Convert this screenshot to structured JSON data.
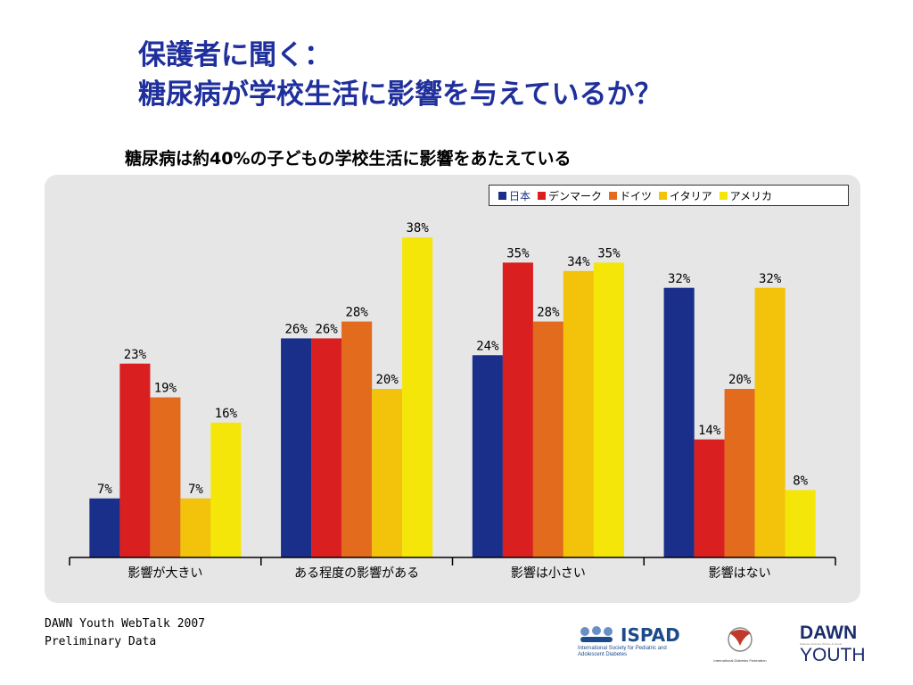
{
  "title": {
    "line1": "保護者に聞く：",
    "line2": "糖尿病が学校生活に影響を与えているか？"
  },
  "subtitle": "糖尿病は約40%の子どもの学校生活に影響をあたえている",
  "colors": {
    "panel": "#e6e6e6",
    "title": "#1f2f9c",
    "series": [
      "#1a2f8a",
      "#d91f1f",
      "#e36b1e",
      "#f2c30a",
      "#f5e60a"
    ]
  },
  "chart_data": {
    "type": "bar",
    "title": "",
    "xlabel": "",
    "ylabel": "",
    "ylim": [
      0,
      45
    ],
    "grid": false,
    "legend_position": "top-right",
    "value_suffix": "%",
    "categories": [
      "影響が大きい",
      "ある程度の影響がある",
      "影響は小さい",
      "影響はない"
    ],
    "series": [
      {
        "name": "日本",
        "values": [
          7,
          26,
          24,
          32
        ]
      },
      {
        "name": "デンマーク",
        "values": [
          23,
          26,
          35,
          14
        ]
      },
      {
        "name": "ドイツ",
        "values": [
          19,
          28,
          28,
          20
        ]
      },
      {
        "name": "イタリア",
        "values": [
          7,
          20,
          34,
          32
        ]
      },
      {
        "name": "アメリカ",
        "values": [
          16,
          38,
          35,
          8
        ]
      }
    ]
  },
  "footer": {
    "line1": "DAWN Youth WebTalk 2007",
    "line2": "Preliminary Data"
  },
  "logos": {
    "ispad_name": "ISPAD",
    "ispad_sub": "International Society for Pediatric and Adolescent Diabetes",
    "idf_name": "International Diabetes Federation",
    "dawn_line1": "DAWN",
    "dawn_line2": "YOUTH",
    "dawn_tagline": "Diabetes Attitudes Wishes & Needs"
  }
}
